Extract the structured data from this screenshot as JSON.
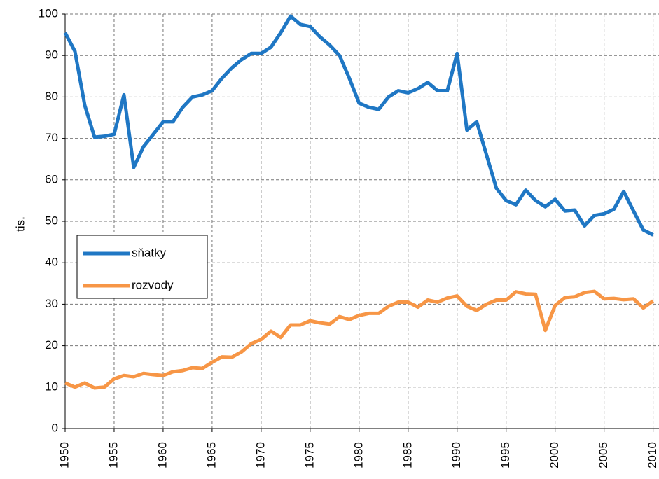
{
  "chart_data": {
    "type": "line",
    "y_label": "tis.",
    "x": [
      1950,
      1951,
      1952,
      1953,
      1954,
      1955,
      1956,
      1957,
      1958,
      1959,
      1960,
      1961,
      1962,
      1963,
      1964,
      1965,
      1966,
      1967,
      1968,
      1969,
      1970,
      1971,
      1972,
      1973,
      1974,
      1975,
      1976,
      1977,
      1978,
      1979,
      1980,
      1981,
      1982,
      1983,
      1984,
      1985,
      1986,
      1987,
      1988,
      1989,
      1990,
      1991,
      1992,
      1993,
      1994,
      1995,
      1996,
      1997,
      1998,
      1999,
      2000,
      2001,
      2002,
      2003,
      2004,
      2005,
      2006,
      2007,
      2008,
      2009,
      2010
    ],
    "series": [
      {
        "name": "sňatky",
        "color": "#1f77c4",
        "values": [
          95.5,
          91,
          78,
          70.3,
          70.5,
          71,
          80.5,
          63,
          68,
          71,
          74,
          74,
          77.5,
          80,
          80.5,
          81.5,
          84.5,
          87,
          89,
          90.5,
          90.5,
          92,
          95.5,
          99.5,
          97.5,
          97,
          94.5,
          92.5,
          90,
          84.5,
          78.5,
          77.5,
          77,
          80,
          81.5,
          81,
          82,
          83.5,
          81.5,
          81.5,
          90.5,
          72,
          74,
          66,
          58,
          55,
          54,
          57.5,
          55,
          53.5,
          55.3,
          52.5,
          52.7,
          48.9,
          51.4,
          51.8,
          52.9,
          57.2,
          52.5,
          47.9,
          46.7
        ]
      },
      {
        "name": "rozvody",
        "color": "#f79646",
        "values": [
          11,
          10,
          11,
          9.8,
          10,
          12,
          12.8,
          12.5,
          13.3,
          13,
          12.8,
          13.7,
          14,
          14.7,
          14.5,
          16,
          17.3,
          17.2,
          18.5,
          20.5,
          21.5,
          23.5,
          22,
          25,
          25,
          26,
          25.5,
          25.2,
          27,
          26.3,
          27.3,
          27.8,
          27.8,
          29.5,
          30.5,
          30.5,
          29.3,
          31,
          30.5,
          31.5,
          32,
          29.5,
          28.5,
          30,
          31,
          31,
          33,
          32.5,
          32.4,
          23.7,
          29.7,
          31.6,
          31.8,
          32.8,
          33.1,
          31.3,
          31.4,
          31.1,
          31.3,
          29.1,
          30.8
        ]
      }
    ],
    "xlim": [
      1950,
      2010.6
    ],
    "xticks": [
      1950,
      1955,
      1960,
      1965,
      1970,
      1975,
      1980,
      1985,
      1990,
      1995,
      2000,
      2005,
      2010
    ],
    "ylim": [
      0,
      100
    ],
    "yticks": [
      0,
      10,
      20,
      30,
      40,
      50,
      60,
      70,
      80,
      90,
      100
    ],
    "grid": true,
    "legend": "left"
  }
}
